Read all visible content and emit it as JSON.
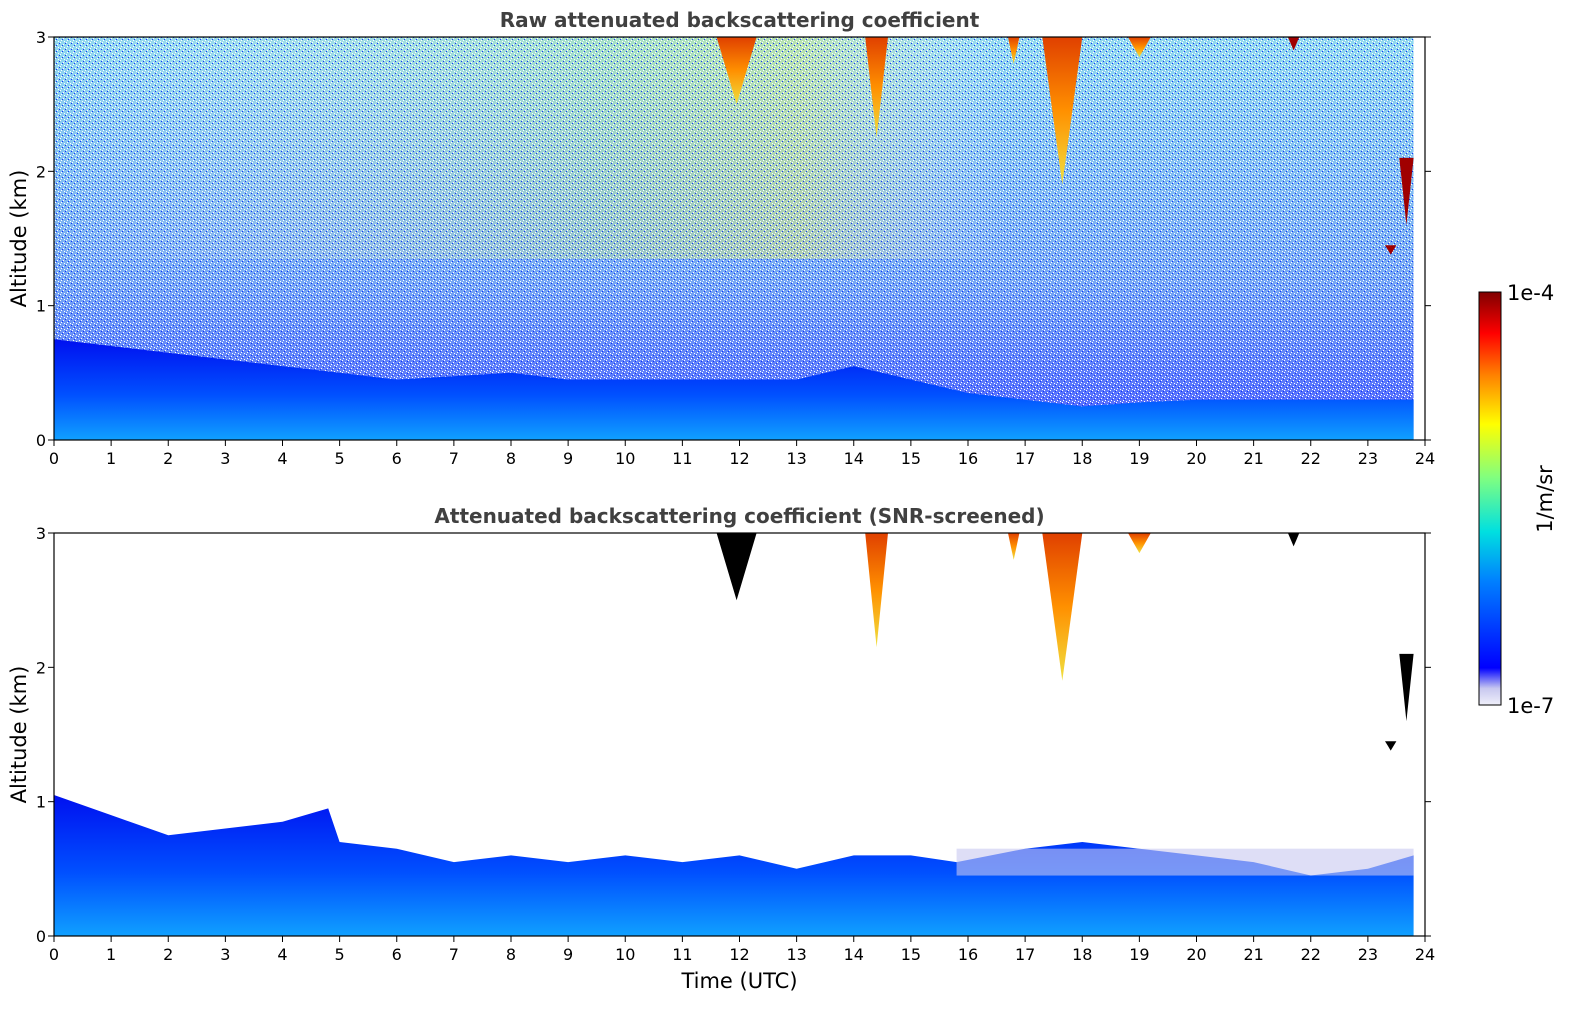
{
  "chart_data": [
    {
      "type": "heatmap",
      "title": "Raw attenuated backscattering coefficient",
      "xlabel": "",
      "ylabel": "Altitude (km)",
      "xlim": [
        0,
        24
      ],
      "ylim": [
        0,
        3
      ],
      "x_ticks": [
        "0",
        "1",
        "2",
        "3",
        "4",
        "5",
        "6",
        "7",
        "8",
        "9",
        "10",
        "11",
        "12",
        "13",
        "14",
        "15",
        "16",
        "17",
        "18",
        "19",
        "20",
        "21",
        "22",
        "23",
        "24"
      ],
      "y_ticks": [
        "0",
        "1",
        "2",
        "3"
      ],
      "grid": false,
      "layers": {
        "boundary_layer_top_km": {
          "time_utc": [
            0,
            2,
            4,
            5,
            6,
            8,
            9,
            10,
            11,
            12,
            13,
            14,
            15,
            16,
            17,
            18,
            19,
            20,
            21,
            22,
            23,
            23.8
          ],
          "altitude_km": [
            0.75,
            0.65,
            0.55,
            0.5,
            0.45,
            0.5,
            0.45,
            0.45,
            0.45,
            0.45,
            0.45,
            0.55,
            0.45,
            0.35,
            0.3,
            0.25,
            0.28,
            0.3,
            0.3,
            0.3,
            0.3,
            0.3
          ]
        },
        "clouds": [
          {
            "t0": 11.6,
            "t1": 12.3,
            "base_km": 2.5,
            "top_km": 3.0
          },
          {
            "t0": 14.2,
            "t1": 14.6,
            "base_km": 2.25,
            "top_km": 3.0
          },
          {
            "t0": 16.7,
            "t1": 16.9,
            "base_km": 2.8,
            "top_km": 3.0
          },
          {
            "t0": 17.3,
            "t1": 18.0,
            "base_km": 1.9,
            "top_km": 3.0
          },
          {
            "t0": 18.8,
            "t1": 19.2,
            "base_km": 2.85,
            "top_km": 3.0
          },
          {
            "t0": 21.6,
            "t1": 21.8,
            "base_km": 2.9,
            "top_km": 3.0
          },
          {
            "t0": 23.55,
            "t1": 23.8,
            "base_km": 1.6,
            "top_km": 2.1
          },
          {
            "t0": 23.3,
            "t1": 23.5,
            "base_km": 1.38,
            "top_km": 1.45
          }
        ]
      }
    },
    {
      "type": "heatmap",
      "title": "Attenuated backscattering coefficient (SNR-screened)",
      "xlabel": "Time (UTC)",
      "ylabel": "Altitude (km)",
      "xlim": [
        0,
        24
      ],
      "ylim": [
        0,
        3
      ],
      "x_ticks": [
        "0",
        "1",
        "2",
        "3",
        "4",
        "5",
        "6",
        "7",
        "8",
        "9",
        "10",
        "11",
        "12",
        "13",
        "14",
        "15",
        "16",
        "17",
        "18",
        "19",
        "20",
        "21",
        "22",
        "23",
        "24"
      ],
      "y_ticks": [
        "0",
        "1",
        "2",
        "3"
      ],
      "grid": false,
      "layers": {
        "boundary_layer_top_km": {
          "time_utc": [
            0,
            1,
            2,
            3,
            4,
            4.8,
            5,
            6,
            7,
            8,
            9,
            10,
            11,
            12,
            13,
            14,
            15,
            15.8,
            17,
            18,
            19,
            20,
            21,
            22,
            23,
            23.8
          ],
          "altitude_km": [
            1.05,
            0.9,
            0.75,
            0.8,
            0.85,
            0.95,
            0.7,
            0.65,
            0.55,
            0.6,
            0.55,
            0.6,
            0.55,
            0.6,
            0.5,
            0.6,
            0.6,
            0.55,
            0.65,
            0.7,
            0.65,
            0.6,
            0.55,
            0.45,
            0.5,
            0.6
          ]
        },
        "clouds": [
          {
            "t0": 11.6,
            "t1": 12.3,
            "base_km": 2.5,
            "top_km": 3.0
          },
          {
            "t0": 14.2,
            "t1": 14.6,
            "base_km": 2.15,
            "top_km": 3.0
          },
          {
            "t0": 16.7,
            "t1": 16.9,
            "base_km": 2.8,
            "top_km": 3.0
          },
          {
            "t0": 17.3,
            "t1": 18.0,
            "base_km": 1.9,
            "top_km": 3.0
          },
          {
            "t0": 18.8,
            "t1": 19.2,
            "base_km": 2.85,
            "top_km": 3.0
          },
          {
            "t0": 21.6,
            "t1": 21.8,
            "base_km": 2.9,
            "top_km": 3.0
          },
          {
            "t0": 23.55,
            "t1": 23.8,
            "base_km": 1.6,
            "top_km": 2.1
          },
          {
            "t0": 23.3,
            "t1": 23.5,
            "base_km": 1.38,
            "top_km": 1.45
          }
        ]
      }
    }
  ],
  "colorbar": {
    "max_label": "1e-4",
    "min_label": "1e-7",
    "label": "1/m/sr",
    "scale": "log",
    "colormap": "jet",
    "colors": [
      "#e8e8f8",
      "#0000ff",
      "#00a0ff",
      "#00e0e0",
      "#80ff80",
      "#ffff00",
      "#ff8000",
      "#ff0000",
      "#800000"
    ]
  }
}
